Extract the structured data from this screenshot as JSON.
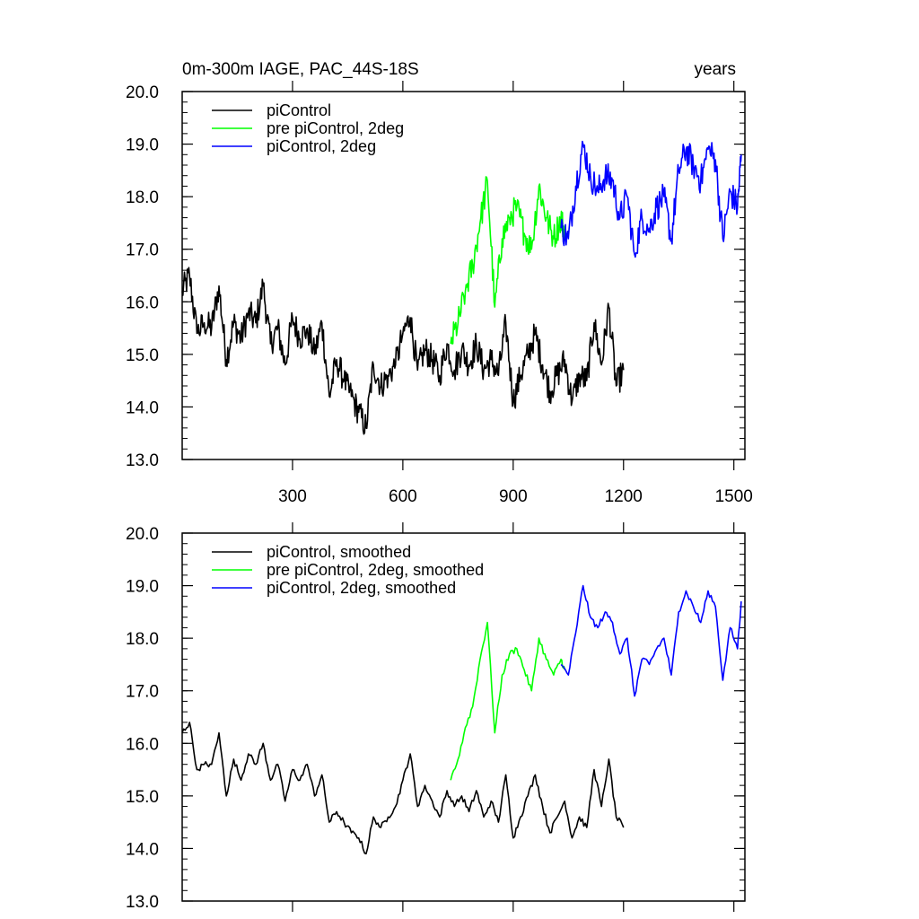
{
  "chart_data": [
    {
      "type": "line",
      "title": "0m-300m IAGE, PAC_44S-18S",
      "units_label": "years",
      "xlim": [
        0,
        1530
      ],
      "ylim": [
        13.0,
        20.0
      ],
      "xticks": [
        300,
        600,
        900,
        1200,
        1500
      ],
      "xtick_labels": [
        "300",
        "600",
        "900",
        "1200",
        "1500"
      ],
      "yticks": [
        13.0,
        14.0,
        15.0,
        16.0,
        17.0,
        18.0,
        19.0,
        20.0
      ],
      "ytick_labels": [
        "13.0",
        "14.0",
        "15.0",
        "16.0",
        "17.0",
        "18.0",
        "19.0",
        "20.0"
      ],
      "legend_position": "top-left",
      "series": [
        {
          "name": "piControl",
          "color": "#000000",
          "x": [
            0,
            20,
            40,
            60,
            80,
            100,
            120,
            140,
            160,
            180,
            200,
            220,
            240,
            260,
            280,
            300,
            320,
            340,
            360,
            380,
            400,
            420,
            440,
            460,
            480,
            500,
            520,
            540,
            560,
            580,
            600,
            620,
            640,
            660,
            680,
            700,
            720,
            740,
            760,
            780,
            800,
            820,
            840,
            860,
            880,
            900,
            920,
            940,
            960,
            980,
            1000,
            1020,
            1040,
            1060,
            1080,
            1100,
            1120,
            1140,
            1160,
            1180,
            1200
          ],
          "y": [
            16.2,
            16.5,
            15.4,
            15.6,
            15.5,
            16.3,
            14.9,
            15.6,
            15.3,
            15.8,
            15.6,
            16.3,
            15.2,
            15.5,
            14.8,
            15.7,
            15.3,
            15.5,
            15.0,
            15.6,
            14.2,
            14.9,
            14.5,
            14.2,
            13.9,
            13.6,
            14.8,
            14.4,
            14.6,
            14.8,
            15.4,
            15.7,
            14.7,
            15.1,
            14.9,
            14.6,
            15.2,
            14.7,
            15.1,
            14.8,
            15.2,
            14.7,
            14.9,
            14.6,
            15.6,
            14.1,
            14.6,
            15.0,
            15.4,
            14.8,
            14.3,
            14.6,
            14.9,
            14.1,
            14.6,
            14.5,
            15.6,
            14.8,
            15.9,
            14.4,
            14.7
          ]
        },
        {
          "name": "pre piControl, 2deg",
          "color": "#00ff00",
          "x": [
            730,
            750,
            770,
            790,
            810,
            830,
            850,
            870,
            890,
            910,
            930,
            950,
            970,
            990,
            1010,
            1030,
            1040
          ],
          "y": [
            15.2,
            15.6,
            16.2,
            16.7,
            17.5,
            18.3,
            15.9,
            17.2,
            17.6,
            17.8,
            17.3,
            17.0,
            18.2,
            17.6,
            17.2,
            17.6,
            17.3
          ]
        },
        {
          "name": "piControl, 2deg",
          "color": "#0000ff",
          "x": [
            1030,
            1050,
            1070,
            1090,
            1110,
            1130,
            1150,
            1170,
            1190,
            1210,
            1230,
            1250,
            1270,
            1290,
            1310,
            1330,
            1350,
            1370,
            1390,
            1410,
            1430,
            1450,
            1470,
            1490,
            1510,
            1520
          ],
          "y": [
            17.4,
            17.2,
            18.2,
            19.0,
            18.4,
            18.1,
            18.4,
            18.3,
            17.6,
            18.0,
            16.9,
            17.6,
            17.4,
            17.8,
            18.0,
            17.2,
            18.5,
            18.9,
            18.6,
            18.3,
            18.9,
            18.7,
            17.2,
            18.1,
            17.8,
            18.8
          ]
        }
      ]
    },
    {
      "type": "line",
      "xlim": [
        0,
        1530
      ],
      "ylim": [
        13.0,
        20.0
      ],
      "xticks": [
        300,
        600,
        900,
        1200,
        1500
      ],
      "yticks": [
        13.0,
        14.0,
        15.0,
        16.0,
        17.0,
        18.0,
        19.0,
        20.0
      ],
      "ytick_labels": [
        "13.0",
        "14.0",
        "15.0",
        "16.0",
        "17.0",
        "18.0",
        "19.0",
        "20.0"
      ],
      "legend_position": "top-left",
      "series": [
        {
          "name": "piControl, smoothed",
          "color": "#000000",
          "x": [
            0,
            20,
            40,
            60,
            80,
            100,
            120,
            140,
            160,
            180,
            200,
            220,
            240,
            260,
            280,
            300,
            320,
            340,
            360,
            380,
            400,
            420,
            440,
            460,
            480,
            500,
            520,
            540,
            560,
            580,
            600,
            620,
            640,
            660,
            680,
            700,
            720,
            740,
            760,
            780,
            800,
            820,
            840,
            860,
            880,
            900,
            920,
            940,
            960,
            980,
            1000,
            1020,
            1040,
            1060,
            1080,
            1100,
            1120,
            1140,
            1160,
            1180,
            1200
          ],
          "y": [
            16.2,
            16.4,
            15.5,
            15.6,
            15.6,
            16.2,
            15.0,
            15.7,
            15.3,
            15.8,
            15.6,
            16.0,
            15.3,
            15.6,
            14.9,
            15.5,
            15.3,
            15.6,
            15.0,
            15.4,
            14.5,
            14.7,
            14.5,
            14.3,
            14.2,
            13.9,
            14.6,
            14.4,
            14.6,
            14.8,
            15.3,
            15.8,
            14.8,
            15.2,
            14.9,
            14.6,
            15.1,
            14.8,
            15.0,
            14.7,
            15.1,
            14.6,
            14.9,
            14.5,
            15.4,
            14.2,
            14.6,
            15.0,
            15.4,
            14.8,
            14.3,
            14.6,
            14.9,
            14.2,
            14.6,
            14.4,
            15.5,
            14.8,
            15.7,
            14.6,
            14.4
          ]
        },
        {
          "name": "pre piControl, 2deg, smoothed",
          "color": "#00ff00",
          "x": [
            730,
            750,
            770,
            790,
            810,
            830,
            850,
            870,
            890,
            910,
            930,
            950,
            970,
            990,
            1010,
            1030,
            1040
          ],
          "y": [
            15.3,
            15.7,
            16.3,
            16.7,
            17.6,
            18.3,
            16.2,
            17.3,
            17.7,
            17.8,
            17.4,
            17.0,
            18.0,
            17.6,
            17.3,
            17.6,
            17.4
          ]
        },
        {
          "name": "piControl, 2deg, smoothed",
          "color": "#0000ff",
          "x": [
            1030,
            1050,
            1070,
            1090,
            1110,
            1130,
            1150,
            1170,
            1190,
            1210,
            1230,
            1250,
            1270,
            1290,
            1310,
            1330,
            1350,
            1370,
            1390,
            1410,
            1430,
            1450,
            1470,
            1490,
            1510,
            1520
          ],
          "y": [
            17.5,
            17.3,
            18.1,
            19.0,
            18.4,
            18.2,
            18.5,
            18.3,
            17.7,
            18.0,
            16.9,
            17.6,
            17.5,
            17.8,
            18.0,
            17.3,
            18.5,
            18.9,
            18.6,
            18.3,
            18.9,
            18.6,
            17.2,
            18.2,
            17.8,
            18.7
          ]
        }
      ]
    }
  ]
}
